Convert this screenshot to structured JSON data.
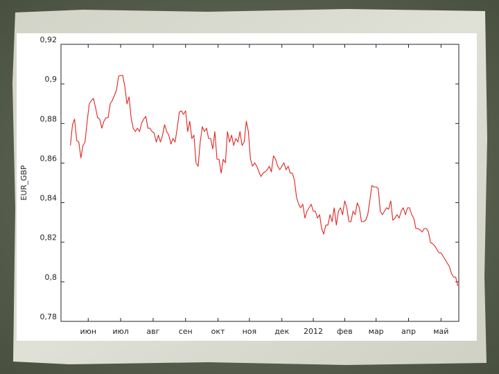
{
  "chart_data": {
    "type": "line",
    "ylabel": "EUR_GBP",
    "xlim": [
      0,
      380
    ],
    "xticks": [
      {
        "value": 26,
        "label": "июн"
      },
      {
        "value": 57,
        "label": "июл"
      },
      {
        "value": 88,
        "label": "авг"
      },
      {
        "value": 119,
        "label": "сен"
      },
      {
        "value": 150,
        "label": "окт"
      },
      {
        "value": 180,
        "label": "ноя"
      },
      {
        "value": 211,
        "label": "дек"
      },
      {
        "value": 241,
        "label": "2012"
      },
      {
        "value": 271,
        "label": "фев"
      },
      {
        "value": 301,
        "label": "мар"
      },
      {
        "value": 332,
        "label": "апр"
      },
      {
        "value": 363,
        "label": "май"
      }
    ],
    "ylim": [
      0.78,
      0.92
    ],
    "yticks": [
      {
        "value": 0.78,
        "label": "0,78"
      },
      {
        "value": 0.8,
        "label": "0,8"
      },
      {
        "value": 0.82,
        "label": "0,82"
      },
      {
        "value": 0.84,
        "label": "0,84"
      },
      {
        "value": 0.86,
        "label": "0,86"
      },
      {
        "value": 0.88,
        "label": "0,88"
      },
      {
        "value": 0.9,
        "label": "0,9"
      },
      {
        "value": 0.92,
        "label": "0,92"
      }
    ],
    "x": [
      9,
      11,
      13,
      15,
      17,
      19,
      21,
      23,
      25,
      27,
      29,
      31,
      33,
      35,
      37,
      39,
      41,
      43,
      45,
      47,
      49,
      51,
      53,
      55,
      57,
      59,
      61,
      63,
      65,
      67,
      69,
      71,
      73,
      75,
      77,
      79,
      81,
      83,
      85,
      87,
      89,
      91,
      93,
      95,
      97,
      99,
      101,
      103,
      105,
      107,
      109,
      111,
      113,
      115,
      117,
      119,
      121,
      123,
      125,
      127,
      129,
      131,
      133,
      135,
      137,
      139,
      141,
      143,
      145,
      147,
      149,
      151,
      153,
      155,
      157,
      159,
      161,
      163,
      165,
      167,
      169,
      171,
      173,
      175,
      177,
      179,
      181,
      183,
      185,
      187,
      189,
      191,
      193,
      195,
      197,
      199,
      201,
      203,
      205,
      207,
      209,
      211,
      213,
      215,
      217,
      219,
      221,
      223,
      225,
      227,
      229,
      231,
      233,
      235,
      237,
      239,
      241,
      243,
      245,
      247,
      249,
      251,
      253,
      255,
      257,
      259,
      261,
      263,
      265,
      267,
      269,
      271,
      273,
      275,
      277,
      279,
      281,
      283,
      285,
      287,
      289,
      291,
      293,
      295,
      297,
      299,
      301,
      303,
      305,
      307,
      309,
      311,
      313,
      315,
      317,
      319,
      321,
      323,
      325,
      327,
      329,
      331,
      333,
      335,
      337,
      339,
      341,
      343,
      345,
      347,
      349,
      351,
      353,
      355,
      357,
      359,
      361,
      363,
      365,
      367,
      369,
      371,
      373,
      375,
      377,
      379
    ],
    "series": [
      {
        "color": "#e0231e",
        "values": [
          0.8689,
          0.8794,
          0.8822,
          0.8714,
          0.8706,
          0.8626,
          0.8689,
          0.8706,
          0.8811,
          0.8899,
          0.8916,
          0.8927,
          0.8881,
          0.8829,
          0.8822,
          0.8776,
          0.8811,
          0.8829,
          0.8829,
          0.8899,
          0.8916,
          0.8941,
          0.8969,
          0.9039,
          0.9043,
          0.9043,
          0.8987,
          0.8899,
          0.8934,
          0.8829,
          0.8776,
          0.8759,
          0.8776,
          0.8759,
          0.8801,
          0.8822,
          0.8836,
          0.8776,
          0.8776,
          0.8759,
          0.8752,
          0.8706,
          0.8741,
          0.8706,
          0.8741,
          0.8794,
          0.8759,
          0.8741,
          0.8696,
          0.8724,
          0.8706,
          0.8776,
          0.8857,
          0.8864,
          0.8846,
          0.8864,
          0.8759,
          0.8811,
          0.8724,
          0.8741,
          0.8601,
          0.8584,
          0.8706,
          0.8784,
          0.8759,
          0.8776,
          0.8724,
          0.8724,
          0.8671,
          0.8759,
          0.8619,
          0.8619,
          0.8549,
          0.8619,
          0.8601,
          0.8759,
          0.8706,
          0.8741,
          0.8689,
          0.8724,
          0.8706,
          0.8759,
          0.8689,
          0.8706,
          0.8811,
          0.8759,
          0.8619,
          0.8584,
          0.8601,
          0.8584,
          0.8556,
          0.8532,
          0.8549,
          0.8556,
          0.8566,
          0.8584,
          0.8556,
          0.8636,
          0.8619,
          0.8584,
          0.8566,
          0.8584,
          0.8601,
          0.8566,
          0.8584,
          0.8549,
          0.8549,
          0.8514,
          0.8426,
          0.8392,
          0.8374,
          0.8392,
          0.8322,
          0.8357,
          0.8374,
          0.8392,
          0.8357,
          0.8357,
          0.8322,
          0.8339,
          0.8269,
          0.8241,
          0.8287,
          0.8287,
          0.8339,
          0.8304,
          0.8374,
          0.8287,
          0.8357,
          0.8374,
          0.8339,
          0.8409,
          0.8374,
          0.8304,
          0.8304,
          0.8357,
          0.8339,
          0.8399,
          0.8374,
          0.8304,
          0.8304,
          0.8311,
          0.8339,
          0.8409,
          0.8486,
          0.8479,
          0.8479,
          0.8472,
          0.8357,
          0.8339,
          0.8357,
          0.8374,
          0.8367,
          0.8409,
          0.8311,
          0.8322,
          0.8339,
          0.8322,
          0.8357,
          0.8374,
          0.8339,
          0.8374,
          0.8374,
          0.8339,
          0.8322,
          0.8269,
          0.8269,
          0.8262,
          0.8252,
          0.8269,
          0.8269,
          0.8252,
          0.8199,
          0.8192,
          0.8182,
          0.8164,
          0.8147,
          0.8147,
          0.8129,
          0.8112,
          0.8094,
          0.8077,
          0.8042,
          0.8024,
          0.8024,
          0.7979
        ]
      }
    ]
  }
}
